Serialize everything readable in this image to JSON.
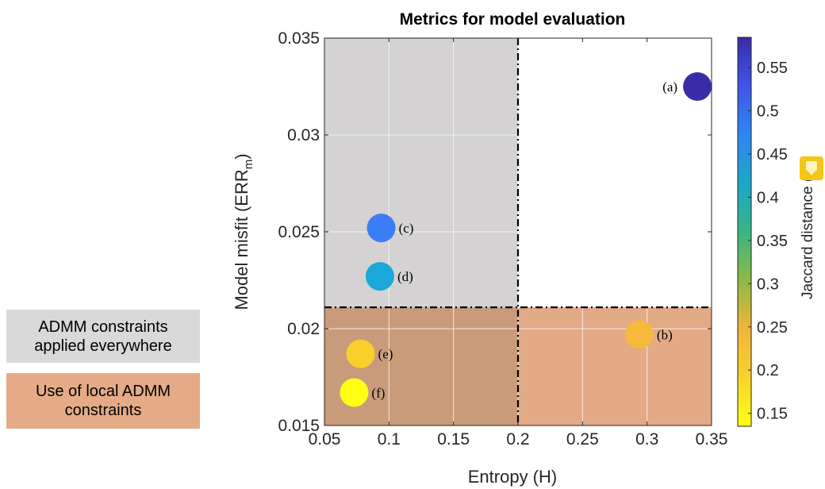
{
  "legend": {
    "gray_label": "ADMM constraints applied everywhere",
    "gray_color": "#d9d9d9",
    "orange_label": "Use of local ADMM constraints",
    "orange_color": "#e4ab86"
  },
  "chart_data": {
    "type": "scatter",
    "title": "Metrics for model evaluation",
    "xlabel": "Entropy (H)",
    "ylabel_main": "Model misfit (ERR",
    "ylabel_sub": "m",
    "ylabel_end": ")",
    "xlim": [
      0.05,
      0.35
    ],
    "ylim": [
      0.015,
      0.035
    ],
    "x_ticks": [
      "0.05",
      "0.1",
      "0.15",
      "0.2",
      "0.25",
      "0.3",
      "0.35"
    ],
    "y_ticks": [
      "0.015",
      "0.02",
      "0.025",
      "0.03",
      "0.035"
    ],
    "grid": true,
    "threshold_x": 0.2,
    "threshold_y": 0.0211,
    "regions": [
      {
        "name": "gray",
        "color": "#d4d2d2"
      },
      {
        "name": "orange-left",
        "color": "#c99b7a"
      },
      {
        "name": "orange-right",
        "color": "#e3aa86"
      }
    ],
    "points": [
      {
        "label": "(a)",
        "x": 0.339,
        "y": 0.0325,
        "value": 0.585,
        "color": "#3a2ca8"
      },
      {
        "label": "(b)",
        "x": 0.294,
        "y": 0.0197,
        "value": 0.2,
        "color": "#f7b93b"
      },
      {
        "label": "(c)",
        "x": 0.094,
        "y": 0.0252,
        "value": 0.46,
        "color": "#3b7df5"
      },
      {
        "label": "(d)",
        "x": 0.093,
        "y": 0.0227,
        "value": 0.38,
        "color": "#1aa8d8"
      },
      {
        "label": "(e)",
        "x": 0.078,
        "y": 0.0187,
        "value": 0.18,
        "color": "#f9cf2c"
      },
      {
        "label": "(f)",
        "x": 0.073,
        "y": 0.0167,
        "value": 0.14,
        "color": "#ffff14"
      }
    ],
    "colorbar": {
      "label": "Jaccard distance (J)",
      "range": [
        0.135,
        0.585
      ],
      "ticks": [
        "0.15",
        "0.2",
        "0.25",
        "0.3",
        "0.35",
        "0.4",
        "0.45",
        "0.5",
        "0.55"
      ],
      "tick_values": [
        0.15,
        0.2,
        0.25,
        0.3,
        0.35,
        0.4,
        0.45,
        0.5,
        0.55
      ],
      "colors": [
        "#ffff14",
        "#f9d22c",
        "#f2b43b",
        "#8cba44",
        "#39b582",
        "#1ba7c8",
        "#2f86f2",
        "#3f55e8",
        "#3a2ca8"
      ]
    }
  }
}
